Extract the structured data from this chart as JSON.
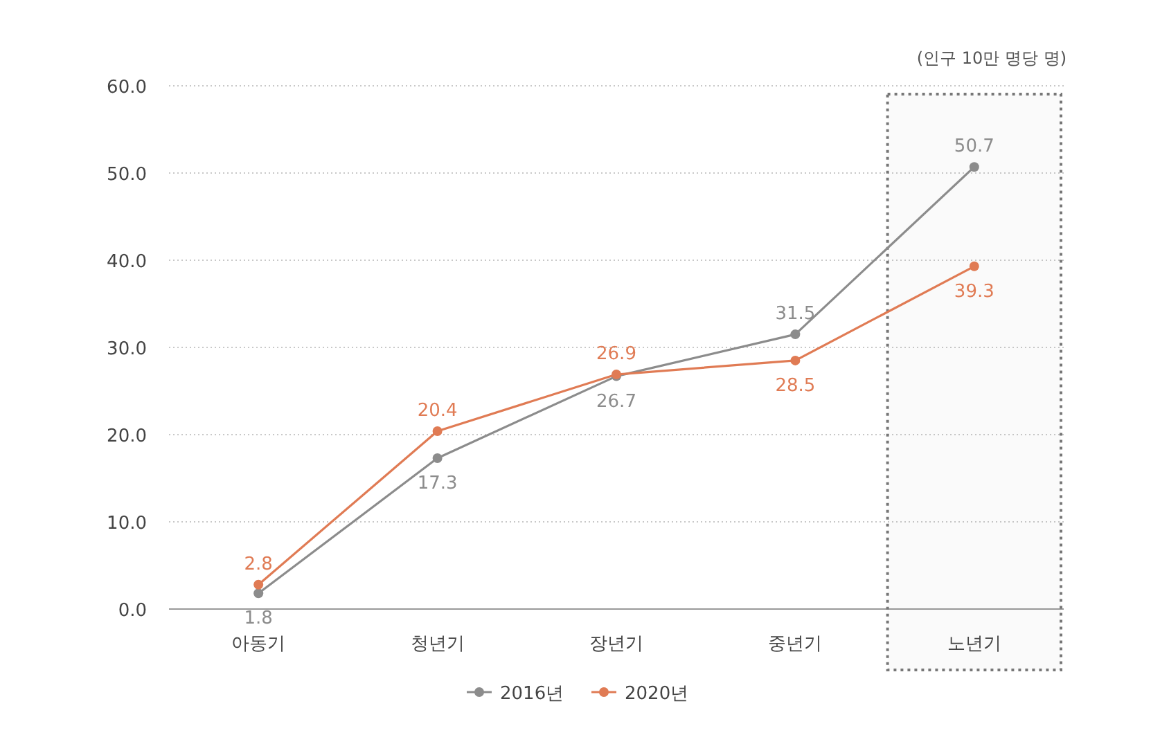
{
  "chart_data": {
    "type": "line",
    "categories": [
      "아동기",
      "청년기",
      "장년기",
      "중년기",
      "노년기"
    ],
    "series": [
      {
        "name": "2016년",
        "color": "#8c8c8c",
        "values": [
          1.8,
          17.3,
          26.7,
          31.5,
          50.7
        ]
      },
      {
        "name": "2020년",
        "color": "#e07b54",
        "values": [
          2.8,
          20.4,
          26.9,
          28.5,
          39.3
        ]
      }
    ],
    "ylim": [
      0,
      60
    ],
    "yticks": [
      {
        "value": 0,
        "label": "0.0"
      },
      {
        "value": 10,
        "label": "10.0"
      },
      {
        "value": 20,
        "label": "20.0"
      },
      {
        "value": 30,
        "label": "30.0"
      },
      {
        "value": 40,
        "label": "40.0"
      },
      {
        "value": 50,
        "label": "50.0"
      },
      {
        "value": 60,
        "label": "60.0"
      }
    ],
    "grid": "y",
    "legend": "bottom",
    "marker": "circle",
    "line_style": "solid",
    "data_labels": true,
    "bands": [
      {
        "axis": "x",
        "from": "노년기",
        "to": "노년기",
        "color": "#777777"
      }
    ],
    "annotations": [
      "(인구 10만 명당 명)"
    ]
  }
}
